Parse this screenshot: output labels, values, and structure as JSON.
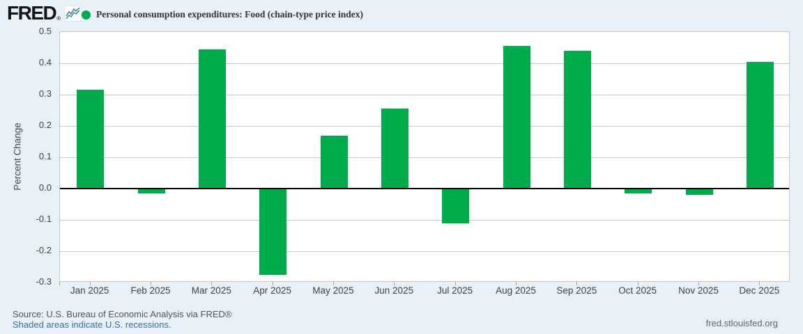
{
  "header": {
    "logo_text": "FRED",
    "logo_registered": "®",
    "legend_marker_color": "#00ab4c",
    "series_title": "Personal consumption expenditures: Food (chain-type price index)"
  },
  "chart_data": {
    "type": "bar",
    "title": "Personal consumption expenditures: Food (chain-type price index)",
    "categories": [
      "Jan 2025",
      "Feb 2025",
      "Mar 2025",
      "Apr 2025",
      "May 2025",
      "Jun 2025",
      "Jul 2025",
      "Aug 2025",
      "Sep 2025",
      "Oct 2025",
      "Nov 2025",
      "Dec 2025"
    ],
    "values": [
      0.315,
      -0.015,
      0.445,
      -0.275,
      0.17,
      0.255,
      -0.11,
      0.455,
      0.44,
      -0.015,
      -0.02,
      0.405
    ],
    "xlabel": "",
    "ylabel": "Percent Change",
    "ylim": [
      -0.3,
      0.5
    ],
    "yticks": [
      0.5,
      0.4,
      0.3,
      0.2,
      0.1,
      0.0,
      -0.1,
      -0.2,
      -0.3
    ],
    "bar_color": "#00ab4c",
    "grid": true,
    "zero_line": true,
    "legend_position": "top-left"
  },
  "footer": {
    "source": "Source: U.S. Bureau of Economic Analysis via FRED®",
    "recessions_note": "Shaded areas indicate U.S. recessions.",
    "site": "fred.stlouisfed.org"
  },
  "colors": {
    "page_background": "#e8f0f8",
    "plot_background": "#ffffff",
    "gridline": "#c8c8c8",
    "bar": "#00ab4c",
    "zero_line": "#000000",
    "axis_text": "#424242",
    "link_text": "#3a6fa5",
    "muted_text": "#555555"
  }
}
